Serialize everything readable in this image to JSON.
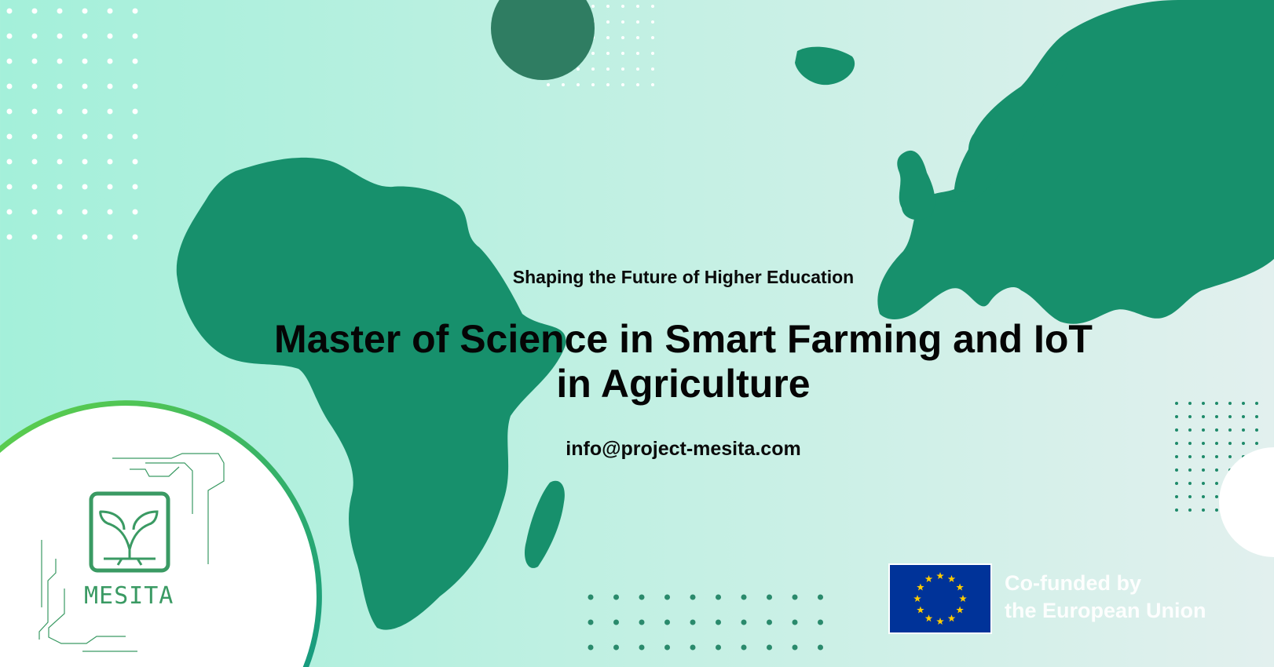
{
  "banner": {
    "subtitle": "Shaping the Future of Higher Education",
    "title_line1": "Master of Science in Smart Farming and IoT",
    "title_line2": "in Agriculture",
    "email": "info@project-mesita.com"
  },
  "logo": {
    "text": "MESITA",
    "icon": "seedling-chip-icon"
  },
  "eu": {
    "line1": "Co-funded by",
    "line2": "the European Union",
    "icon": "eu-flag-icon"
  },
  "colors": {
    "map": "#17906c",
    "accent": "#3a9a63",
    "eu_blue": "#003399",
    "eu_star": "#ffcc00"
  }
}
